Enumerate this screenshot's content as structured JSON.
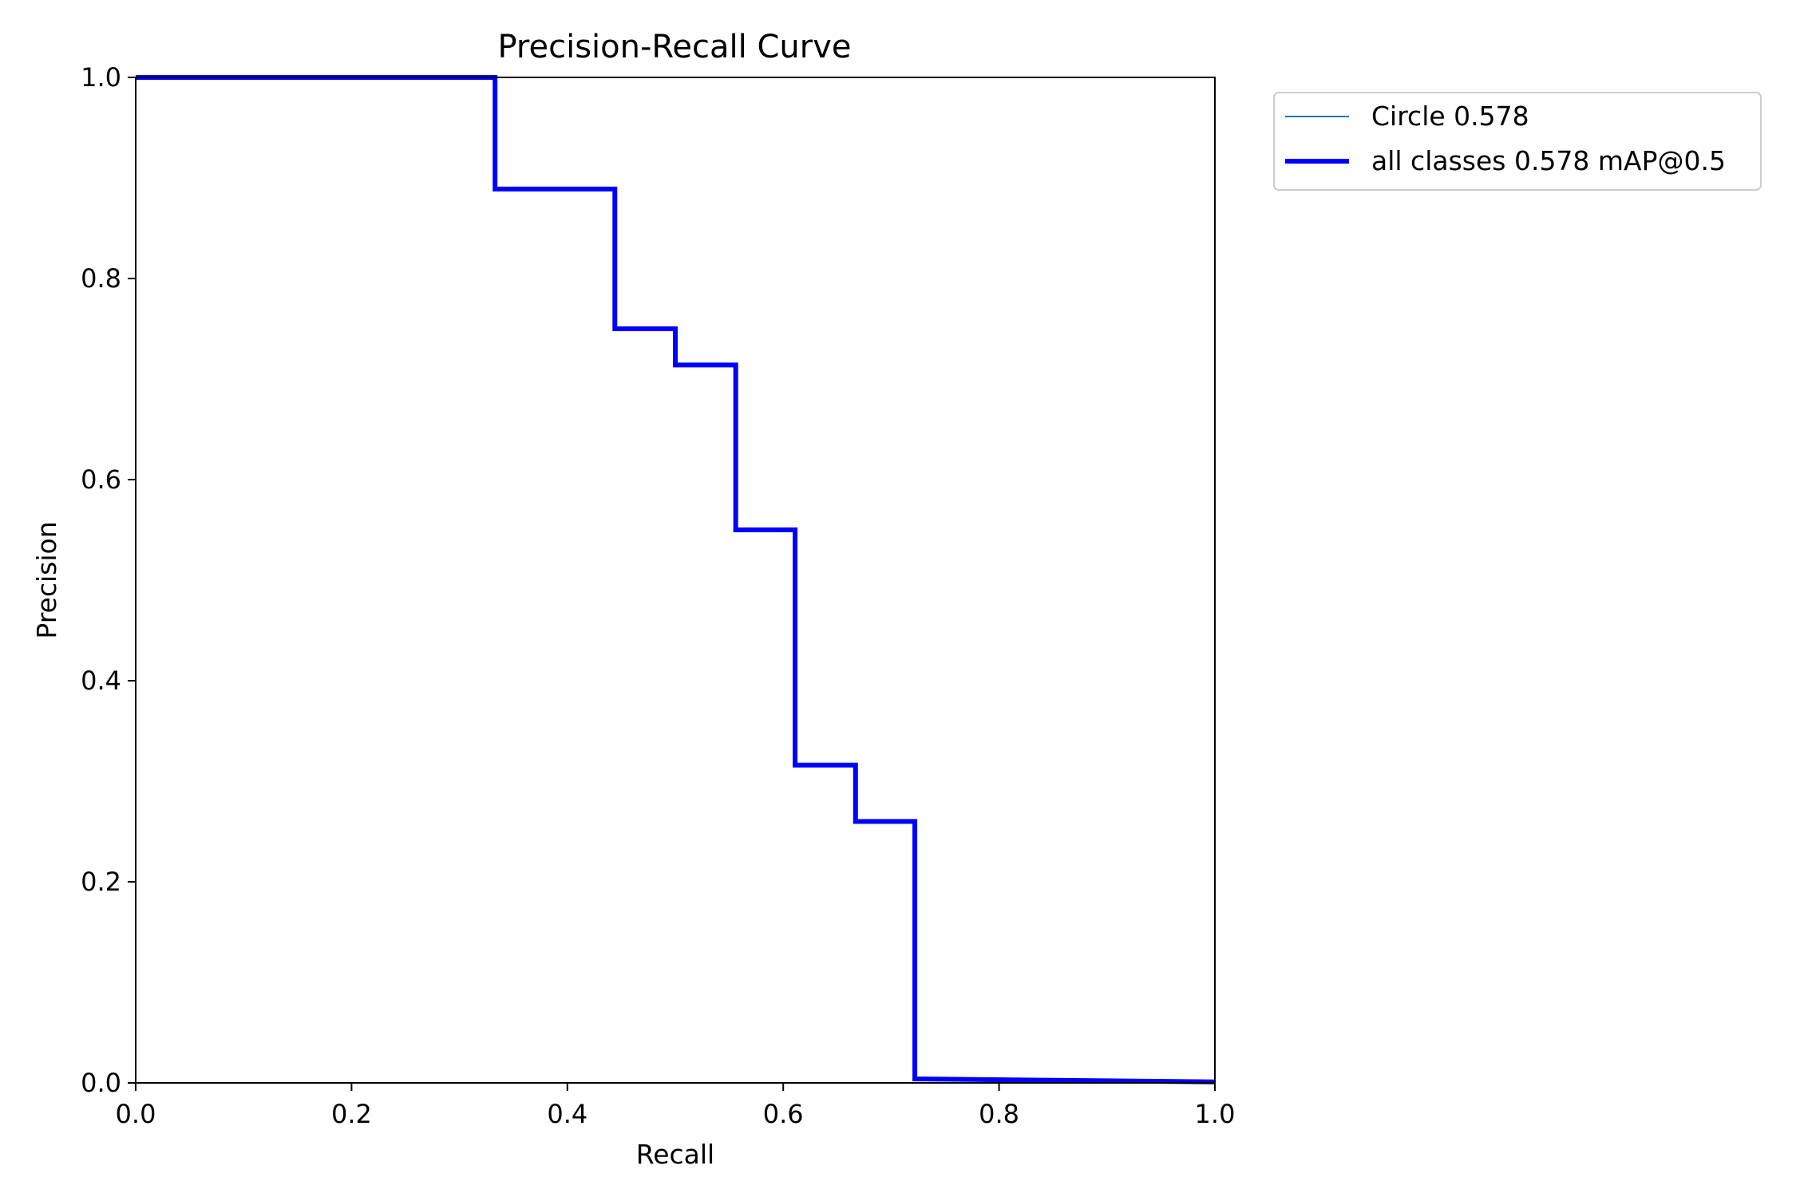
{
  "chart_data": {
    "type": "line",
    "title": "Precision-Recall Curve",
    "xlabel": "Recall",
    "ylabel": "Precision",
    "xlim": [
      0.0,
      1.0
    ],
    "ylim": [
      0.0,
      1.0
    ],
    "xticks": [
      "0.0",
      "0.2",
      "0.4",
      "0.6",
      "0.8",
      "1.0"
    ],
    "yticks": [
      "0.0",
      "0.2",
      "0.4",
      "0.6",
      "0.8",
      "1.0"
    ],
    "grid": false,
    "legend_position": "outside-top-right",
    "series": [
      {
        "name": "Circle 0.578",
        "color": "#1f77b4",
        "line_style": "thin",
        "points": [
          [
            0.0,
            1.0
          ],
          [
            0.333,
            1.0
          ],
          [
            0.333,
            0.889
          ],
          [
            0.444,
            0.889
          ],
          [
            0.444,
            0.75
          ],
          [
            0.5,
            0.75
          ],
          [
            0.5,
            0.714
          ],
          [
            0.556,
            0.714
          ],
          [
            0.556,
            0.55
          ],
          [
            0.611,
            0.55
          ],
          [
            0.611,
            0.316
          ],
          [
            0.667,
            0.316
          ],
          [
            0.667,
            0.26
          ],
          [
            0.722,
            0.26
          ],
          [
            0.722,
            0.004
          ],
          [
            1.0,
            0.001
          ]
        ]
      },
      {
        "name": "all classes 0.578 mAP@0.5",
        "color": "#0000ff",
        "line_style": "thick",
        "points": [
          [
            0.0,
            1.0
          ],
          [
            0.333,
            1.0
          ],
          [
            0.333,
            0.889
          ],
          [
            0.444,
            0.889
          ],
          [
            0.444,
            0.75
          ],
          [
            0.5,
            0.75
          ],
          [
            0.5,
            0.714
          ],
          [
            0.556,
            0.714
          ],
          [
            0.556,
            0.55
          ],
          [
            0.611,
            0.55
          ],
          [
            0.611,
            0.316
          ],
          [
            0.667,
            0.316
          ],
          [
            0.667,
            0.26
          ],
          [
            0.722,
            0.26
          ],
          [
            0.722,
            0.004
          ],
          [
            1.0,
            0.001
          ]
        ]
      }
    ]
  }
}
